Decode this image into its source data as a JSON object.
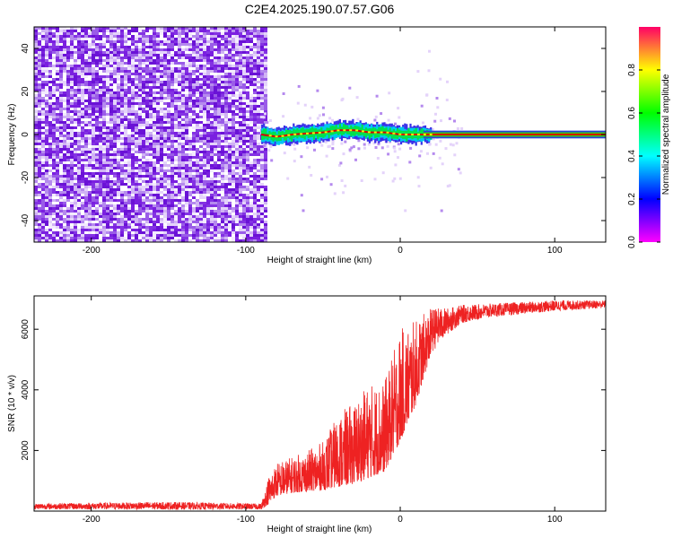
{
  "figure": {
    "title": "C2E4.2025.190.07.57.G06"
  },
  "colors": {
    "series": "#ee2222",
    "track": "#d40000",
    "purple_strong": "#7a1fe0",
    "purple_light": "#d9c3f5",
    "colormap": [
      "#ff00ff",
      "#0000ff",
      "#00ffff",
      "#00ff00",
      "#ffff00",
      "#ff0000"
    ]
  },
  "chart_data": [
    {
      "type": "heatmap",
      "xlabel": "Height of straight line (km)",
      "ylabel": "Frequency (Hz)",
      "xlim": [
        -237,
        133
      ],
      "ylim": [
        -50,
        50
      ],
      "xticks": [
        -200,
        -100,
        0,
        100
      ],
      "yticks": [
        -40,
        -20,
        0,
        20,
        40
      ],
      "colorbar": {
        "label": "Normalized spectral amplitude",
        "range": [
          0,
          1
        ],
        "ticks": [
          0.0,
          0.2,
          0.4,
          0.6,
          0.8
        ]
      },
      "noise_region": {
        "x_range": [
          -237,
          -88
        ],
        "f_range": [
          -50,
          50
        ]
      },
      "signal_track": {
        "x": [
          -90,
          -80,
          -70,
          -60,
          -50,
          -40,
          -30,
          -20,
          -10,
          0,
          10,
          20,
          40,
          60,
          80,
          100,
          133
        ],
        "freq": [
          0,
          -1,
          0,
          0.5,
          1,
          2,
          2,
          1,
          1,
          0,
          0,
          0,
          0,
          0,
          0,
          0,
          0
        ]
      }
    },
    {
      "type": "line",
      "xlabel": "Height of straight line (km)",
      "ylabel": "SNR (10 * v/v)",
      "xlim": [
        -237,
        133
      ],
      "ylim": [
        0,
        7100
      ],
      "xticks": [
        -200,
        -100,
        0,
        100
      ],
      "yticks": [
        2000,
        4000,
        6000
      ],
      "series": [
        {
          "x": [
            -237,
            -150,
            -90,
            -85,
            -80,
            -70,
            -60,
            -50,
            -40,
            -30,
            -20,
            -10,
            0,
            10,
            20,
            30,
            40,
            60,
            80,
            100,
            133
          ],
          "low": [
            60,
            50,
            50,
            250,
            500,
            600,
            650,
            700,
            800,
            900,
            1100,
            1300,
            2300,
            3500,
            5200,
            5800,
            6200,
            6400,
            6500,
            6600,
            6700
          ],
          "high": [
            250,
            300,
            250,
            1200,
            1600,
            1800,
            2000,
            2300,
            3200,
            3600,
            4200,
            4300,
            6000,
            6300,
            6700,
            6700,
            6800,
            6850,
            6900,
            6950,
            6950
          ]
        }
      ]
    }
  ]
}
